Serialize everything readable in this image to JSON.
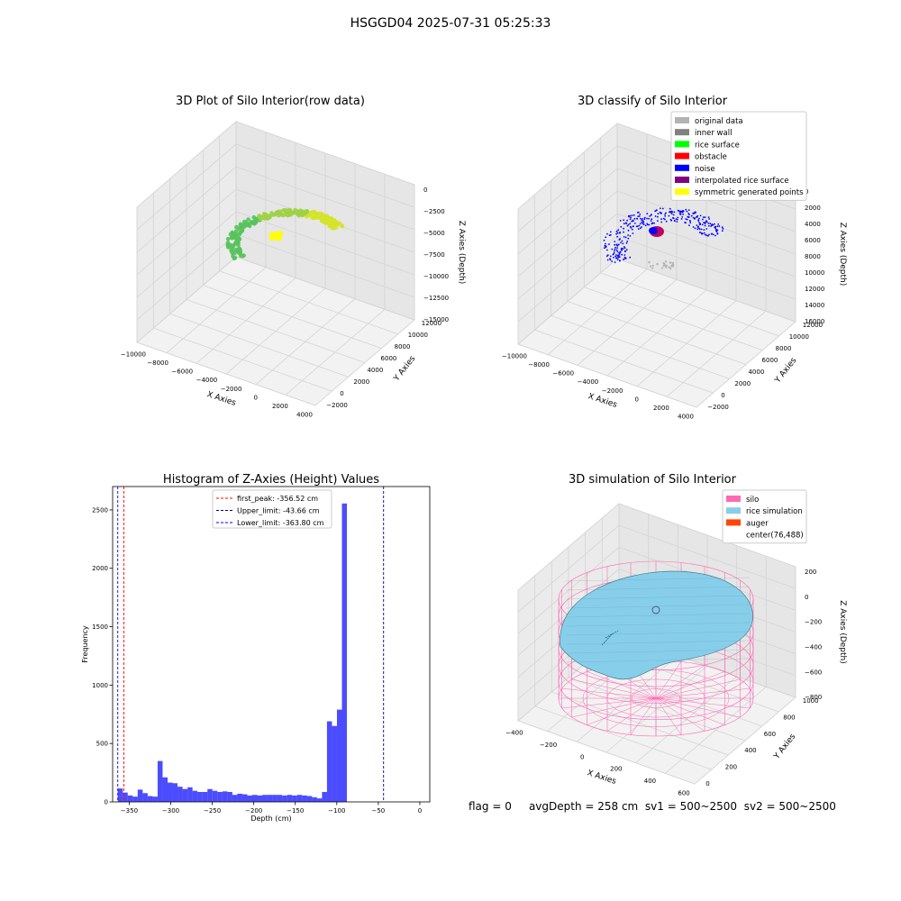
{
  "figure": {
    "suptitle": "HSGGD04 2025-07-31 05:25:33",
    "footer": {
      "flag": "flag = 0",
      "avg_depth": "avgDepth = 258 cm",
      "sv1": "sv1 = 500~2500",
      "sv2": "sv2 = 500~2500"
    }
  },
  "chart_data": [
    {
      "type": "scatter",
      "projection": "3d",
      "title": "3D Plot of Silo Interior(row data)",
      "xlabel": "X Axies",
      "ylabel": "Y Axies",
      "zlabel": "Z Axies (Depth)",
      "x_ticks": [
        "−10000",
        "−8000",
        "−6000",
        "−4000",
        "−2000",
        "0",
        "2000",
        "4000"
      ],
      "y_ticks": [
        "−2000",
        "0",
        "2000",
        "4000",
        "6000",
        "8000",
        "10000",
        "12000"
      ],
      "z_ticks": [
        "0",
        "−2500",
        "−5000",
        "−7500",
        "−10000",
        "−12500",
        "−15000"
      ],
      "xlim": [
        -10000,
        4500
      ],
      "ylim": [
        -2500,
        12500
      ],
      "zlim": [
        -16000,
        500
      ],
      "colormap": "green-to-yellow by height",
      "cluster_colors": [
        "#58c35c",
        "#ffff00",
        "#d4e32a"
      ]
    },
    {
      "type": "scatter",
      "projection": "3d",
      "title": "3D classify of Silo Interior",
      "xlabel": "X Axies",
      "ylabel": "Y Axies",
      "zlabel": "Z Axies (Depth)",
      "x_ticks": [
        "−10000",
        "−8000",
        "−6000",
        "−4000",
        "−2000",
        "0",
        "2000",
        "4000"
      ],
      "y_ticks": [
        "−2000",
        "0",
        "2000",
        "4000",
        "6000",
        "8000",
        "10000",
        "12000"
      ],
      "z_ticks": [
        "0",
        "2000",
        "4000",
        "6000",
        "8000",
        "10000",
        "12000",
        "14000",
        "16000"
      ],
      "legend_position": "top-right",
      "legend": [
        {
          "label": "original data",
          "color": "#b3b3b3"
        },
        {
          "label": "inner wall",
          "color": "#808080"
        },
        {
          "label": "rice surface",
          "color": "#00ff00"
        },
        {
          "label": "obstacle",
          "color": "#ff0000"
        },
        {
          "label": "noise",
          "color": "#0000ff"
        },
        {
          "label": "interpolated rice surface",
          "color": "#800080"
        },
        {
          "label": "symmetric generated points",
          "color": "#ffff00"
        }
      ]
    },
    {
      "type": "bar",
      "title": "Histogram of Z-Axies (Height) Values",
      "xlabel": "Depth (cm)",
      "ylabel": "Frequency",
      "xlim": [
        -370,
        12
      ],
      "ylim": [
        0,
        2700
      ],
      "x_ticks": [
        -350,
        -300,
        -250,
        -200,
        -150,
        -100,
        -50,
        0
      ],
      "y_ticks": [
        0,
        500,
        1000,
        1500,
        2000,
        2500
      ],
      "bin_width": 6.0,
      "bin_start": -363.8,
      "values": [
        115,
        80,
        55,
        45,
        105,
        75,
        50,
        45,
        350,
        210,
        165,
        160,
        130,
        110,
        125,
        95,
        85,
        85,
        110,
        95,
        85,
        90,
        85,
        60,
        70,
        65,
        55,
        60,
        55,
        60,
        60,
        60,
        60,
        55,
        60,
        55,
        60,
        55,
        50,
        40,
        30,
        85,
        690,
        650,
        790,
        2555
      ],
      "bar_color": "#0000ff",
      "bar_opacity": 0.7,
      "vlines": [
        {
          "label": "first_peak: -356.52 cm",
          "value": -356.52,
          "color": "#ff0000"
        },
        {
          "label": "Upper_limit: -43.66 cm",
          "value": -43.66,
          "color": "#00008b"
        },
        {
          "label": "Lower_limit: -363.80 cm",
          "value": -363.8,
          "color": "#0000ff"
        }
      ],
      "legend_position": "upper center"
    },
    {
      "type": "surface",
      "projection": "3d",
      "title": "3D simulation of Silo Interior",
      "xlabel": "X Axies",
      "ylabel": "Y Axies",
      "zlabel": "Z Axies (Depth)",
      "x_ticks": [
        "−400",
        "−200",
        "0",
        "200",
        "400",
        "600"
      ],
      "y_ticks": [
        "0",
        "200",
        "400",
        "600",
        "800",
        "1000"
      ],
      "z_ticks": [
        "200",
        "0",
        "−200",
        "−400",
        "−600",
        "−800"
      ],
      "legend_position": "top-right",
      "legend": [
        {
          "label": "silo",
          "color": "#ff69b4"
        },
        {
          "label": "rice simulation",
          "color": "#87ceeb"
        },
        {
          "label": "auger",
          "color": "#ff4500"
        },
        {
          "label": "center(76,488)",
          "color": ""
        }
      ]
    }
  ]
}
